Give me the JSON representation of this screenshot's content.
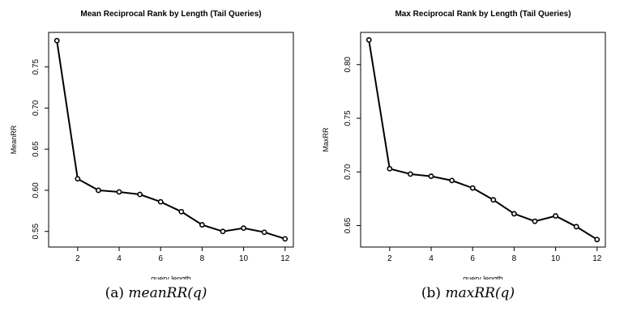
{
  "chart_data": [
    {
      "type": "line",
      "title": "Mean Reciprocal Rank by Length (Tail Queries)",
      "xlabel": "query length",
      "ylabel": "MeanRR",
      "x": [
        1,
        2,
        3,
        4,
        5,
        6,
        7,
        8,
        9,
        10,
        11,
        12
      ],
      "series": [
        {
          "values": [
            0.782,
            0.614,
            0.6,
            0.598,
            0.595,
            0.586,
            0.574,
            0.558,
            0.55,
            0.554,
            0.549,
            0.541
          ]
        }
      ],
      "xlim": [
        0.6,
        12.4
      ],
      "ylim": [
        0.531,
        0.792
      ],
      "xticks": [
        2,
        4,
        6,
        8,
        10,
        12
      ],
      "yticks": [
        0.55,
        0.6,
        0.65,
        0.7,
        0.75
      ],
      "ytick_labels": [
        "0.55",
        "0.60",
        "0.65",
        "0.70",
        "0.75"
      ],
      "grid": false,
      "caption_prefix": "(a) ",
      "caption_math": "meanRR(q)"
    },
    {
      "type": "line",
      "title": "Max Reciprocal Rank by Length (Tail Queries)",
      "xlabel": "query length",
      "ylabel": "MaxRR",
      "x": [
        1,
        2,
        3,
        4,
        5,
        6,
        7,
        8,
        9,
        10,
        11,
        12
      ],
      "series": [
        {
          "values": [
            0.823,
            0.703,
            0.698,
            0.696,
            0.692,
            0.685,
            0.674,
            0.661,
            0.654,
            0.659,
            0.649,
            0.637
          ]
        }
      ],
      "xlim": [
        0.6,
        12.4
      ],
      "ylim": [
        0.63,
        0.83
      ],
      "xticks": [
        2,
        4,
        6,
        8,
        10,
        12
      ],
      "yticks": [
        0.65,
        0.7,
        0.75,
        0.8
      ],
      "ytick_labels": [
        "0.65",
        "0.70",
        "0.75",
        "0.80"
      ],
      "grid": false,
      "caption_prefix": "(b) ",
      "caption_math": "maxRR(q)"
    }
  ]
}
